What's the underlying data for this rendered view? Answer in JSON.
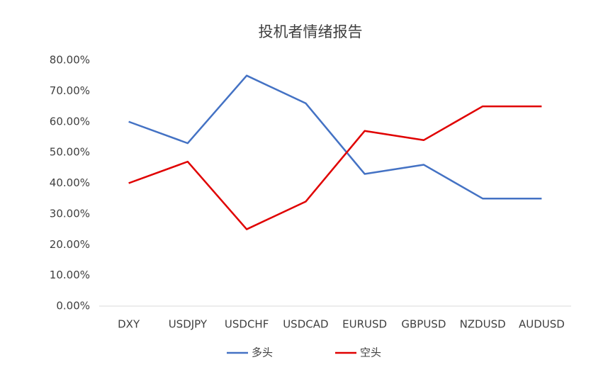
{
  "chart_data": {
    "type": "line",
    "title": "投机者情绪报告",
    "categories": [
      "DXY",
      "USDJPY",
      "USDCHF",
      "USDCAD",
      "EURUSD",
      "GBPUSD",
      "NZDUSD",
      "AUDUSD"
    ],
    "series": [
      {
        "name": "多头",
        "color": "#4472c4",
        "values": [
          60,
          53,
          75,
          66,
          43,
          46,
          35,
          35
        ]
      },
      {
        "name": "空头",
        "color": "#e00000",
        "values": [
          40,
          47,
          25,
          34,
          57,
          54,
          65,
          65
        ]
      }
    ],
    "ylim": [
      0,
      80
    ],
    "yticks": [
      {
        "value": 0,
        "label": "0.00%"
      },
      {
        "value": 10,
        "label": "10.00%"
      },
      {
        "value": 20,
        "label": "20.00%"
      },
      {
        "value": 30,
        "label": "30.00%"
      },
      {
        "value": 40,
        "label": "40.00%"
      },
      {
        "value": 50,
        "label": "50.00%"
      },
      {
        "value": 60,
        "label": "60.00%"
      },
      {
        "value": 70,
        "label": "70.00%"
      },
      {
        "value": 80,
        "label": "80.00%"
      }
    ],
    "grid": false,
    "legend": "bottom"
  }
}
